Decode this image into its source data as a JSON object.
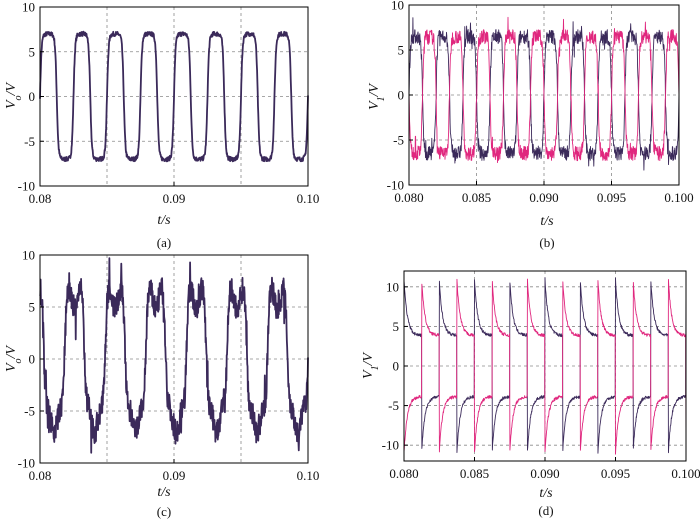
{
  "figure": {
    "colors": {
      "primary": "#3b2a5a",
      "secondary": "#e0277e",
      "grid": "#8a8a8a",
      "frame": "#000000"
    }
  },
  "chart_data": [
    {
      "id": "a",
      "type": "line",
      "caption": "(a)",
      "xlabel": "t/s",
      "ylabel": "Vo/V",
      "xlim": [
        0.08,
        0.1
      ],
      "ylim": [
        -10,
        10
      ],
      "xticks": [
        0.08,
        0.09,
        0.1
      ],
      "xtick_labels": [
        "0.08",
        "0.09",
        "0.10"
      ],
      "yticks": [
        -10,
        -5,
        0,
        5,
        10
      ],
      "ytick_labels": [
        "-10",
        "-5",
        "0",
        "5",
        "10"
      ],
      "xgrid": [
        0.085,
        0.09,
        0.095
      ],
      "ygrid": [
        -5,
        0,
        5
      ],
      "series": [
        {
          "waveform": "square-rounded",
          "frequency_hz": 400,
          "amplitude_v": 7,
          "phase_deg": 0,
          "color": "#3b2a5a",
          "stroke": 1.8,
          "noise": 0.25
        }
      ]
    },
    {
      "id": "b",
      "type": "line",
      "caption": "(b)",
      "xlabel": "t/s",
      "ylabel": "V1/V",
      "xlim": [
        0.08,
        0.1
      ],
      "ylim": [
        -10,
        10
      ],
      "xticks": [
        0.08,
        0.085,
        0.09,
        0.095,
        0.1
      ],
      "xtick_labels": [
        "0.080",
        "0.085",
        "0.090",
        "0.095",
        "0.100"
      ],
      "yticks": [
        -10,
        -5,
        0,
        5,
        10
      ],
      "ytick_labels": [
        "-10",
        "-5",
        "0",
        "5",
        "10"
      ],
      "xgrid": [
        0.085,
        0.09,
        0.095
      ],
      "ygrid": [
        -5,
        0,
        5
      ],
      "series": [
        {
          "waveform": "square-rounded",
          "frequency_hz": 500,
          "amplitude_v": 6.5,
          "phase_deg": 0,
          "color": "#3b2a5a",
          "stroke": 0.9,
          "noise": 0.8,
          "spike": 1.8
        },
        {
          "waveform": "square-rounded",
          "frequency_hz": 500,
          "amplitude_v": 6.5,
          "phase_deg": 180,
          "color": "#e0277e",
          "stroke": 0.9,
          "noise": 0.8,
          "spike": 1.8
        }
      ]
    },
    {
      "id": "c",
      "type": "line",
      "caption": "(c)",
      "xlabel": "t/s",
      "ylabel": "Vo/V",
      "xlim": [
        0.08,
        0.1
      ],
      "ylim": [
        -10,
        10
      ],
      "xticks": [
        0.08,
        0.09,
        0.1
      ],
      "xtick_labels": [
        "0.08",
        "0.09",
        "0.10"
      ],
      "yticks": [
        -10,
        -5,
        0,
        5,
        10
      ],
      "ytick_labels": [
        "-10",
        "-5",
        "0",
        "5",
        "10"
      ],
      "xgrid": [
        0.085,
        0.09,
        0.095
      ],
      "ygrid": [
        -5,
        0,
        5
      ],
      "series": [
        {
          "waveform": "square-distorted",
          "frequency_hz": 330,
          "amplitude_v": 7,
          "phase_deg": 0,
          "color": "#3b2a5a",
          "stroke": 1.8,
          "noise": 1.2,
          "spike": 2.5
        }
      ]
    },
    {
      "id": "d",
      "type": "line",
      "caption": "(d)",
      "xlabel": "t/s",
      "ylabel": "V1/V",
      "xlim": [
        0.08,
        0.1
      ],
      "ylim": [
        -12,
        12
      ],
      "xticks": [
        0.08,
        0.085,
        0.09,
        0.095,
        0.1
      ],
      "xtick_labels": [
        "0.080",
        "0.085",
        "0.090",
        "0.095",
        "0.100"
      ],
      "yticks": [
        -10,
        -5,
        0,
        5,
        10
      ],
      "ytick_labels": [
        "-10",
        "-5",
        "0",
        "5",
        "10"
      ],
      "xgrid": [
        0.085,
        0.09,
        0.095
      ],
      "ygrid": [
        -10,
        -5,
        0,
        5,
        10
      ],
      "series": [
        {
          "waveform": "pulse-decay",
          "frequency_hz": 400,
          "amplitude_v": 11,
          "phase_deg": 0,
          "color": "#3b2a5a",
          "stroke": 0.9,
          "noise": 0.2
        },
        {
          "waveform": "pulse-decay",
          "frequency_hz": 400,
          "amplitude_v": 11,
          "phase_deg": 180,
          "color": "#e0277e",
          "stroke": 0.9,
          "noise": 0.2
        }
      ]
    }
  ]
}
